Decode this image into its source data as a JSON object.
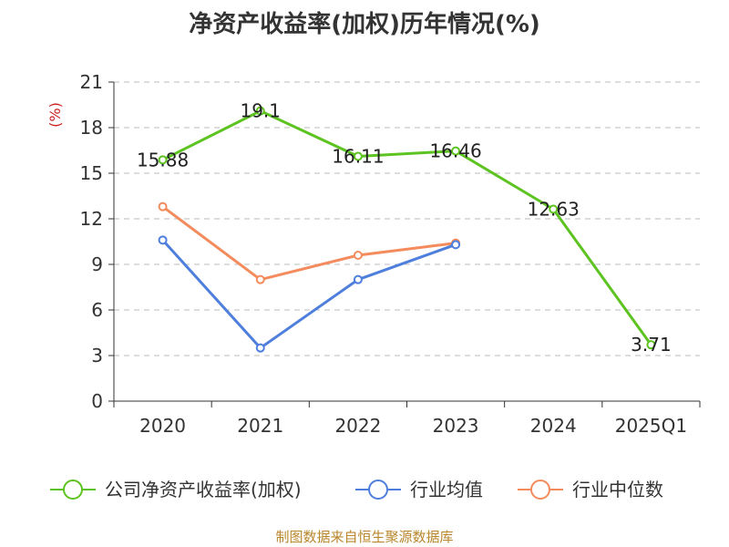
{
  "chart_data": {
    "type": "line",
    "title": "净资产收益率(加权)历年情况(%)",
    "ylabel": "(%)",
    "categories": [
      "2020",
      "2021",
      "2022",
      "2023",
      "2024",
      "2025Q1"
    ],
    "ylim": [
      0,
      21
    ],
    "yticks": [
      0,
      3,
      6,
      9,
      12,
      15,
      18,
      21
    ],
    "grid": true,
    "legend_position": "bottom",
    "series": [
      {
        "name": "公司净资产收益率(加权)",
        "color": "#5cc320",
        "values": [
          15.88,
          19.1,
          16.11,
          16.46,
          12.63,
          3.71
        ],
        "labels": [
          "15.88",
          "19.1",
          "16.11",
          "16.46",
          "12.63",
          "3.71"
        ]
      },
      {
        "name": "行业均值",
        "color": "#4e7fdc",
        "values": [
          10.6,
          3.5,
          8.0,
          10.3,
          null,
          null
        ]
      },
      {
        "name": "行业中位数",
        "color": "#f48b5c",
        "values": [
          12.8,
          8.0,
          9.6,
          10.4,
          null,
          null
        ]
      }
    ]
  },
  "source_note": "制图数据来自恒生聚源数据库"
}
